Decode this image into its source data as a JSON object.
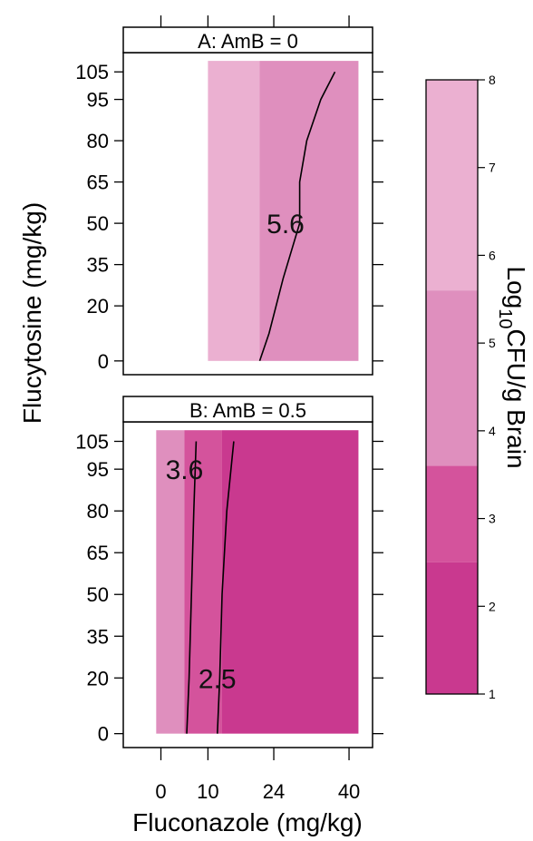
{
  "chart_data": {
    "type": "heatmap",
    "xlabel": "Fluconazole (mg/kg)",
    "ylabel": "Flucytosine (mg/kg)",
    "x_ticks": [
      0,
      10,
      24,
      40
    ],
    "y_ticks": [
      0,
      20,
      35,
      50,
      65,
      80,
      95,
      105
    ],
    "xlim": [
      -8,
      45
    ],
    "ylim": [
      -5,
      112
    ],
    "colorbar": {
      "label": "Log10CFU/g Brain",
      "label_main": "Log",
      "label_sub": "10",
      "label_rest": "CFU/g Brain",
      "range": [
        1,
        8
      ],
      "ticks": [
        1,
        2,
        3,
        4,
        5,
        6,
        7,
        8
      ],
      "bands": [
        {
          "from": 1.0,
          "to": 2.5,
          "color": "#c9398f"
        },
        {
          "from": 2.5,
          "to": 3.6,
          "color": "#d4539c"
        },
        {
          "from": 3.6,
          "to": 5.6,
          "color": "#df8fbe"
        },
        {
          "from": 5.6,
          "to": 8.0,
          "color": "#ebb0d1"
        }
      ]
    },
    "panels": [
      {
        "strip_letter": "A:",
        "strip_text": "AmB = 0",
        "x_range": [
          10,
          42
        ],
        "y_range": [
          0,
          109
        ],
        "cells": [
          {
            "x0": 10,
            "x1": 21,
            "y0": 0,
            "y1": 109,
            "color": "#ebb0d1"
          },
          {
            "x0": 21,
            "x1": 42,
            "y0": 0,
            "y1": 109,
            "color": "#df8fbe"
          }
        ],
        "contours": [
          {
            "level_label": "5.6",
            "points": [
              [
                21,
                0
              ],
              [
                23,
                10
              ],
              [
                26,
                30
              ],
              [
                29.5,
                50
              ],
              [
                29.5,
                65
              ],
              [
                31,
                80
              ],
              [
                34,
                95
              ],
              [
                37,
                105
              ]
            ],
            "label_at": [
              26.5,
              50
            ]
          }
        ]
      },
      {
        "strip_letter": "B:",
        "strip_text": "AmB = 0.5",
        "x_range": [
          -1,
          42
        ],
        "y_range": [
          0,
          109
        ],
        "cells": [
          {
            "x0": -1,
            "x1": 5,
            "y0": 0,
            "y1": 109,
            "color": "#df8fbe"
          },
          {
            "x0": 5,
            "x1": 13,
            "y0": 0,
            "y1": 109,
            "color": "#d4539c"
          },
          {
            "x0": 13,
            "x1": 42,
            "y0": 0,
            "y1": 109,
            "color": "#c9398f"
          }
        ],
        "contours": [
          {
            "level_label": "3.6",
            "points": [
              [
                5.5,
                0
              ],
              [
                6,
                20
              ],
              [
                6.5,
                50
              ],
              [
                7,
                80
              ],
              [
                7.5,
                105
              ]
            ],
            "label_at": [
              5,
              95
            ]
          },
          {
            "level_label": "2.5",
            "points": [
              [
                12,
                0
              ],
              [
                12.5,
                20
              ],
              [
                13,
                50
              ],
              [
                14,
                80
              ],
              [
                15.5,
                105
              ]
            ],
            "label_at": [
              12,
              20
            ]
          }
        ]
      }
    ]
  }
}
